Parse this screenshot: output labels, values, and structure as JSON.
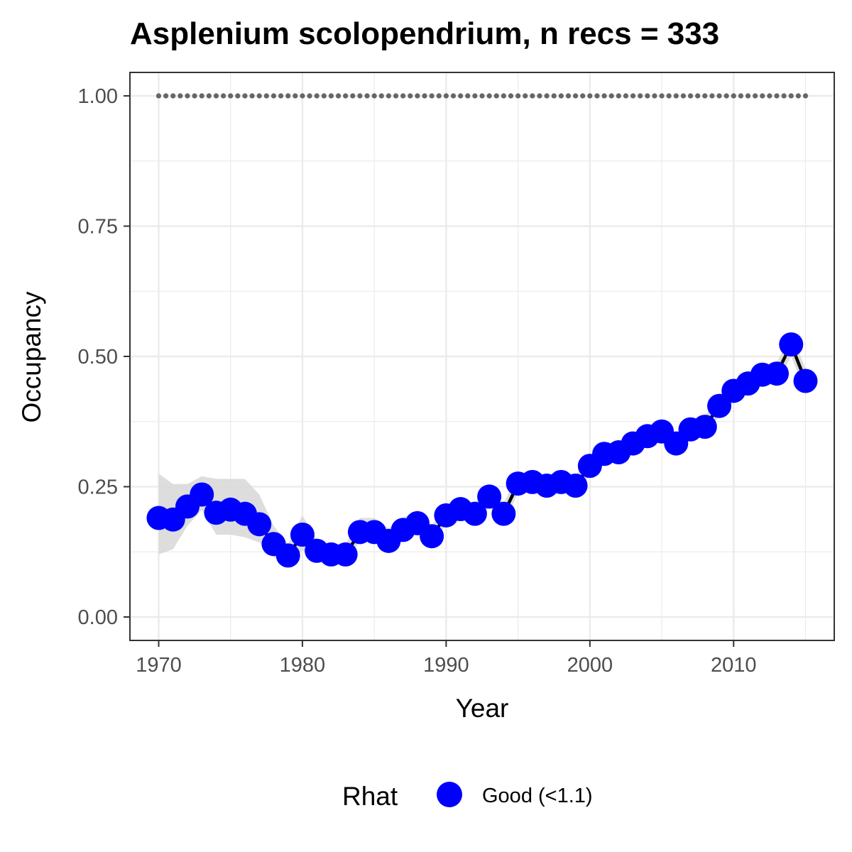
{
  "chart_data": {
    "type": "line",
    "title": "Asplenium scolopendrium, n recs = 333",
    "xlabel": "Year",
    "ylabel": "Occupancy",
    "xlim": [
      1968,
      2017
    ],
    "ylim": [
      -0.045,
      1.045
    ],
    "x_ticks": [
      1970,
      1980,
      1990,
      2000,
      2010
    ],
    "x_tick_labels": [
      "1970",
      "1980",
      "1990",
      "2000",
      "2010"
    ],
    "y_ticks": [
      0,
      0.25,
      0.5,
      0.75,
      1.0
    ],
    "y_tick_labels": [
      "0.00",
      "0.25",
      "0.50",
      "0.75",
      "1.00"
    ],
    "grid": true,
    "x": [
      1970,
      1971,
      1972,
      1973,
      1974,
      1975,
      1976,
      1977,
      1978,
      1979,
      1980,
      1981,
      1982,
      1983,
      1984,
      1985,
      1986,
      1987,
      1988,
      1989,
      1990,
      1991,
      1992,
      1993,
      1994,
      1995,
      1996,
      1997,
      1998,
      1999,
      2000,
      2001,
      2002,
      2003,
      2004,
      2005,
      2006,
      2007,
      2008,
      2009,
      2010,
      2011,
      2012,
      2013,
      2014,
      2015
    ],
    "series": [
      {
        "name": "Occupancy",
        "values": [
          0.19,
          0.187,
          0.212,
          0.235,
          0.2,
          0.206,
          0.198,
          0.178,
          0.14,
          0.118,
          0.158,
          0.127,
          0.12,
          0.12,
          0.163,
          0.163,
          0.146,
          0.167,
          0.18,
          0.155,
          0.195,
          0.207,
          0.198,
          0.231,
          0.198,
          0.256,
          0.259,
          0.252,
          0.259,
          0.252,
          0.29,
          0.313,
          0.316,
          0.333,
          0.347,
          0.356,
          0.333,
          0.36,
          0.365,
          0.405,
          0.434,
          0.448,
          0.465,
          0.467,
          0.523,
          0.453
        ],
        "lower": [
          0.12,
          0.13,
          0.175,
          0.205,
          0.158,
          0.158,
          0.153,
          0.143,
          0.115,
          0.1,
          0.128,
          0.11,
          0.108,
          0.108,
          0.145,
          0.147,
          0.132,
          0.15,
          0.162,
          0.14,
          0.178,
          0.19,
          0.18,
          0.212,
          0.18,
          0.238,
          0.24,
          0.235,
          0.24,
          0.235,
          0.272,
          0.293,
          0.298,
          0.315,
          0.33,
          0.338,
          0.315,
          0.342,
          0.348,
          0.385,
          0.414,
          0.428,
          0.445,
          0.447,
          0.5,
          0.43
        ],
        "upper": [
          0.275,
          0.255,
          0.255,
          0.27,
          0.265,
          0.265,
          0.265,
          0.235,
          0.175,
          0.14,
          0.195,
          0.148,
          0.138,
          0.14,
          0.19,
          0.19,
          0.17,
          0.19,
          0.205,
          0.175,
          0.215,
          0.227,
          0.218,
          0.252,
          0.218,
          0.276,
          0.28,
          0.272,
          0.28,
          0.272,
          0.31,
          0.333,
          0.336,
          0.353,
          0.367,
          0.376,
          0.353,
          0.38,
          0.385,
          0.425,
          0.454,
          0.468,
          0.485,
          0.487,
          0.546,
          0.476
        ],
        "rhat": [
          "Good (<1.1)",
          "Good (<1.1)",
          "Good (<1.1)",
          "Good (<1.1)",
          "Good (<1.1)",
          "Good (<1.1)",
          "Good (<1.1)",
          "Good (<1.1)",
          "Good (<1.1)",
          "Good (<1.1)",
          "Good (<1.1)",
          "Good (<1.1)",
          "Good (<1.1)",
          "Good (<1.1)",
          "Good (<1.1)",
          "Good (<1.1)",
          "Good (<1.1)",
          "Good (<1.1)",
          "Good (<1.1)",
          "Good (<1.1)",
          "Good (<1.1)",
          "Good (<1.1)",
          "Good (<1.1)",
          "Good (<1.1)",
          "Good (<1.1)",
          "Good (<1.1)",
          "Good (<1.1)",
          "Good (<1.1)",
          "Good (<1.1)",
          "Good (<1.1)",
          "Good (<1.1)",
          "Good (<1.1)",
          "Good (<1.1)",
          "Good (<1.1)",
          "Good (<1.1)",
          "Good (<1.1)",
          "Good (<1.1)",
          "Good (<1.1)",
          "Good (<1.1)",
          "Good (<1.1)",
          "Good (<1.1)",
          "Good (<1.1)",
          "Good (<1.1)",
          "Good (<1.1)",
          "Good (<1.1)",
          "Good (<1.1)"
        ]
      }
    ],
    "reference_line": {
      "y": 1.0,
      "style": "dotted",
      "from": 1970,
      "to": 2015
    },
    "legend": {
      "title": "Rhat",
      "position": "bottom",
      "entries": [
        {
          "label": "Good (<1.1)",
          "color": "#0000ff"
        }
      ]
    },
    "colors": {
      "points": "#0000ff",
      "line": "#000000",
      "ribbon": "#d9d9d9",
      "reference": "#666666",
      "grid": "#ebebeb",
      "panel_border": "#333333"
    }
  }
}
